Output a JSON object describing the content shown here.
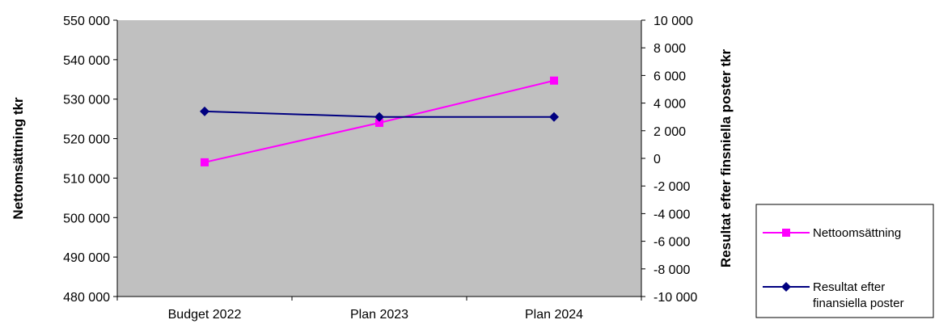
{
  "chart_data": {
    "type": "line",
    "categories": [
      "Budget 2022",
      "Plan 2023",
      "Plan 2024"
    ],
    "ylabel_left": "Nettomsättning tkr",
    "ylabel_right": "Resultat efter finsniella poster tkr",
    "ylim_left": [
      480000,
      550000
    ],
    "ylim_right": [
      -10000,
      10000
    ],
    "yticks_left": [
      "480 000",
      "490 000",
      "500 000",
      "510 000",
      "520 000",
      "530 000",
      "540 000",
      "550 000"
    ],
    "yticks_right": [
      "-10 000",
      "-8 000",
      "-6 000",
      "-4 000",
      "-2 000",
      "0",
      "2 000",
      "4 000",
      "6 000",
      "8 000",
      "10 000"
    ],
    "grid": false,
    "plot_background": "#c0c0c0",
    "legend_position": "right",
    "series": [
      {
        "name": "Nettoomsättning",
        "axis": "left",
        "color": "#ff00ff",
        "marker": "square",
        "values": [
          514000,
          524000,
          534700
        ]
      },
      {
        "name": "Resultat efter finansiella poster",
        "legend_lines": [
          "Resultat efter",
          "finansiella poster"
        ],
        "axis": "right",
        "color": "#000080",
        "marker": "diamond",
        "values": [
          3400,
          3000,
          3000
        ]
      }
    ]
  }
}
